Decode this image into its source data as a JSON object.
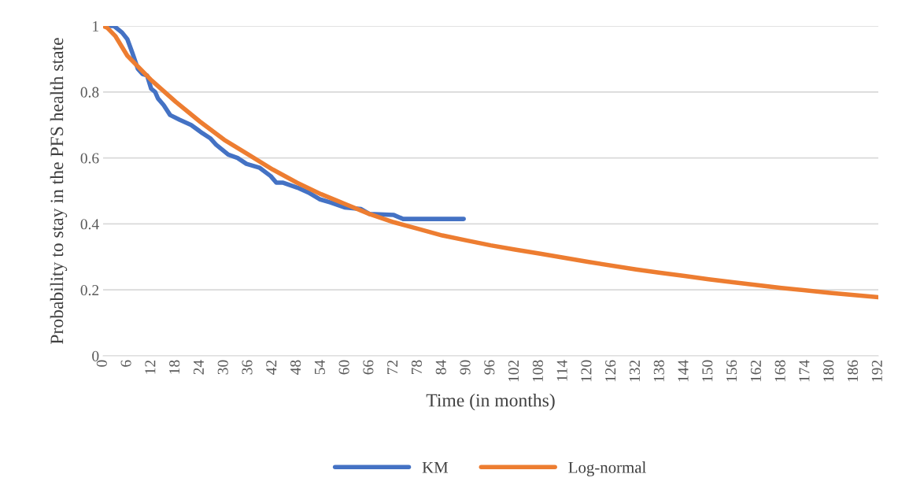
{
  "chart_data": {
    "type": "line",
    "xlabel": "Time (in months)",
    "ylabel": "Probability to stay in the PFS health state",
    "xlim": [
      0,
      192
    ],
    "xticks": [
      0,
      6,
      12,
      18,
      24,
      30,
      36,
      42,
      48,
      54,
      60,
      66,
      72,
      78,
      84,
      90,
      96,
      102,
      108,
      114,
      120,
      126,
      132,
      138,
      144,
      150,
      156,
      162,
      168,
      174,
      180,
      186,
      192
    ],
    "ylim": [
      0,
      1
    ],
    "yticks": [
      0,
      {
        "value": 0.2,
        "label": "0.2"
      },
      {
        "value": 0.4,
        "label": "0.4"
      },
      {
        "value": 0.6,
        "label": "0.6"
      },
      {
        "value": 0.8,
        "label": "0.8"
      },
      1
    ],
    "grid": "y",
    "legend": "bottom",
    "marker": "none",
    "line_style": "solid",
    "series": [
      {
        "name": "KM",
        "color": "#4472c4",
        "x": [
          0,
          2.7,
          4.7,
          6,
          7.2,
          8.6,
          9.7,
          10.9,
          11.9,
          12.9,
          13.6,
          15,
          16.6,
          18.9,
          21.8,
          24.6,
          26.5,
          28,
          31,
          33.3,
          35.5,
          38.8,
          41.5,
          42.9,
          44.6,
          48.1,
          50.9,
          53.6,
          56.3,
          59.8,
          63.9,
          66,
          72,
          74.3,
          89.3
        ],
        "values": [
          1,
          1,
          0.98,
          0.96,
          0.92,
          0.87,
          0.855,
          0.85,
          0.81,
          0.8,
          0.78,
          0.76,
          0.73,
          0.716,
          0.7,
          0.675,
          0.66,
          0.64,
          0.61,
          0.6,
          0.582,
          0.57,
          0.545,
          0.525,
          0.525,
          0.51,
          0.495,
          0.475,
          0.465,
          0.45,
          0.445,
          0.43,
          0.427,
          0.415,
          0.415
        ]
      },
      {
        "name": "Log-normal",
        "color": "#ed7d31",
        "x": [
          0,
          1,
          3,
          6,
          12,
          18,
          24,
          30,
          36,
          42,
          48,
          54,
          60,
          66,
          72,
          78,
          84,
          90,
          96,
          102,
          108,
          120,
          132,
          138,
          144,
          150,
          156,
          168,
          180,
          192
        ],
        "values": [
          1,
          0.995,
          0.97,
          0.91,
          0.835,
          0.77,
          0.71,
          0.655,
          0.61,
          0.565,
          0.525,
          0.49,
          0.46,
          0.43,
          0.405,
          0.385,
          0.365,
          0.35,
          0.335,
          0.322,
          0.31,
          0.285,
          0.262,
          0.252,
          0.242,
          0.232,
          0.223,
          0.206,
          0.191,
          0.178
        ]
      }
    ]
  }
}
